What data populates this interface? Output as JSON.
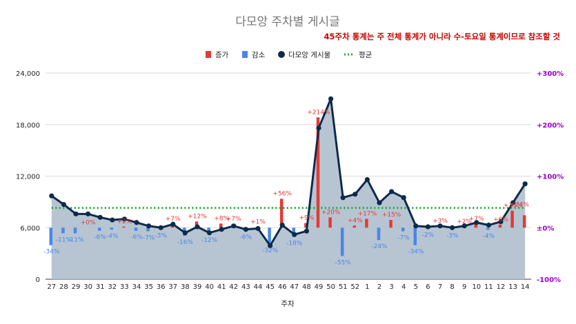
{
  "chart_data": {
    "type": "bar",
    "title": "다모앙 주차별 게시글",
    "note": "45주차 통계는 주 전체 통계가 아니라 수-토요일 통계이므로 참조할 것",
    "xlabel": "주차",
    "ylabel": "",
    "ylim": [
      0,
      24000
    ],
    "y_ticks": [
      "0",
      "6,000",
      "12,000",
      "18,000",
      "24,000"
    ],
    "y2lim": [
      -100,
      300
    ],
    "y2_ticks": [
      "-100%",
      "±0%",
      "+100%",
      "+200%",
      "+300%"
    ],
    "grid": true,
    "legend_position": "top",
    "categories": [
      "27",
      "28",
      "29",
      "30",
      "31",
      "32",
      "33",
      "34",
      "35",
      "36",
      "37",
      "38",
      "39",
      "40",
      "41",
      "42",
      "43",
      "44",
      "45",
      "46",
      "47",
      "48",
      "49",
      "50",
      "51",
      "52",
      "1",
      "2",
      "3",
      "4",
      "5",
      "6",
      "7",
      "8",
      "9",
      "10",
      "11",
      "12",
      "13",
      "14"
    ],
    "series": [
      {
        "name": "증가",
        "type": "bar",
        "axis": "right",
        "color": "#e53935",
        "values": [
          null,
          null,
          null,
          0,
          null,
          null,
          2,
          null,
          null,
          null,
          7,
          null,
          12,
          null,
          8,
          7,
          null,
          1,
          null,
          56,
          null,
          9,
          214,
          20,
          null,
          4,
          17,
          null,
          15,
          null,
          null,
          null,
          3,
          null,
          2,
          7,
          null,
          6,
          33,
          24
        ]
      },
      {
        "name": "감소",
        "type": "bar",
        "axis": "right",
        "color": "#4a86e8",
        "values": [
          -34,
          -11,
          -11,
          null,
          -6,
          -4,
          null,
          -6,
          -7,
          -3,
          null,
          -16,
          null,
          -12,
          null,
          null,
          -6,
          null,
          -32,
          null,
          -18,
          null,
          null,
          null,
          -55,
          null,
          null,
          -24,
          null,
          -7,
          -34,
          -2,
          null,
          -3,
          null,
          null,
          -4,
          null,
          null,
          null
        ]
      },
      {
        "name": "다모앙 게시물",
        "type": "area-line",
        "axis": "left",
        "color": "#0d2a4a",
        "fill": "#b3c2d1",
        "values": [
          9700,
          8700,
          7600,
          7600,
          7200,
          6900,
          7000,
          6600,
          6200,
          6000,
          6400,
          5400,
          6100,
          5400,
          5800,
          6200,
          5800,
          5900,
          3900,
          6300,
          5200,
          5600,
          17600,
          21000,
          9500,
          9900,
          11600,
          8900,
          10200,
          9500,
          6200,
          6100,
          6200,
          6000,
          6200,
          6600,
          6300,
          6700,
          8900,
          11100
        ]
      },
      {
        "name": "평균",
        "type": "line",
        "axis": "left",
        "color": "#22aa33",
        "style": "dotted",
        "values": [
          8300,
          8300,
          8300,
          8300,
          8300,
          8300,
          8300,
          8300,
          8300,
          8300,
          8300,
          8300,
          8300,
          8300,
          8300,
          8300,
          8300,
          8300,
          8300,
          8300,
          8300,
          8300,
          8300,
          8300,
          8300,
          8300,
          8300,
          8300,
          8300,
          8300,
          8300,
          8300,
          8300,
          8300,
          8300,
          8300,
          8300,
          8300,
          8300,
          8300
        ]
      }
    ],
    "labels": [
      "-34%",
      "-11%",
      "-11%",
      "+0%",
      "-6%",
      "-4%",
      "+2%",
      "-6%",
      "-7%",
      "-3%",
      "+7%",
      "-16%",
      "+12%",
      "-12%",
      "+8%",
      "+7%",
      "-6%",
      "+1%",
      "-32%",
      "+56%",
      "-18%",
      "+9%",
      "+214%",
      "+20%",
      "-55%",
      "+4%",
      "+17%",
      "-24%",
      "+15%",
      "-7%",
      "-34%",
      "-2%",
      "+3%",
      "-3%",
      "+2%",
      "+7%",
      "-4%",
      "+6%",
      "+33%",
      "+24%"
    ]
  }
}
